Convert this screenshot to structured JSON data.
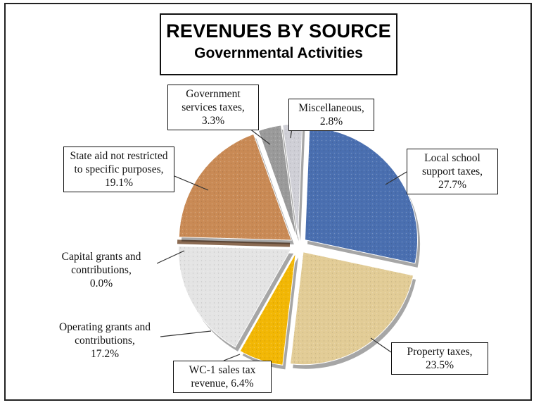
{
  "chart_data": {
    "type": "pie",
    "title": "REVENUES BY SOURCE",
    "subtitle": "Governmental Activities",
    "slices": [
      {
        "label": "Local school support taxes,",
        "value": 27.7,
        "pct": "27.7%",
        "color": "#4a6fb0"
      },
      {
        "label": "Property taxes,",
        "value": 23.5,
        "pct": "23.5%",
        "color": "#e2cc96"
      },
      {
        "label": "WC-1 sales tax revenue,",
        "value": 6.4,
        "pct": "6.4%",
        "color": "#f2b705"
      },
      {
        "label": "Operating grants and contributions,",
        "value": 17.2,
        "pct": "17.2%",
        "color": "#e4e4e4"
      },
      {
        "label": "Capital grants and contributions,",
        "value": 0.0,
        "pct": "0.0%",
        "color": "#8a6a52"
      },
      {
        "label": "State aid not restricted to specific purposes,",
        "value": 19.1,
        "pct": "19.1%",
        "color": "#c98a55"
      },
      {
        "label": "Government services taxes,",
        "value": 3.3,
        "pct": "3.3%",
        "color": "#9a9a9a"
      },
      {
        "label": "Miscellaneous,",
        "value": 2.8,
        "pct": "2.8%",
        "color": "#cfcfd6"
      }
    ]
  }
}
